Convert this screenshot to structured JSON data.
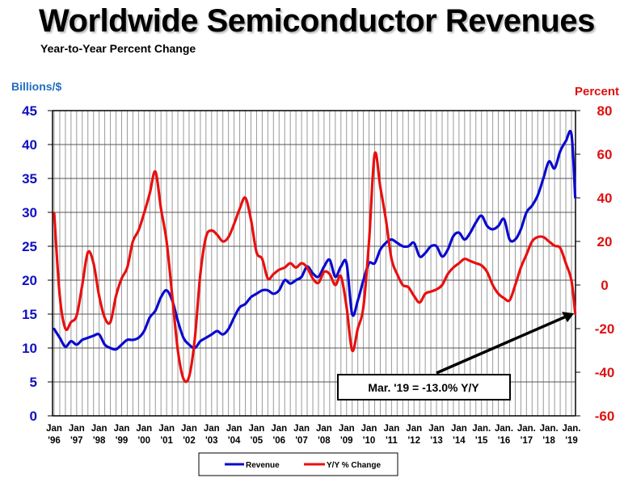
{
  "chart_data": {
    "type": "line",
    "title": "Worldwide Semiconductor Revenues",
    "subtitle": "Year-to-Year Percent Change",
    "ylabel_left": "Billions/$",
    "ylabel_right": "Percent",
    "ylim_left": [
      0,
      45
    ],
    "ylim_right": [
      -60,
      80
    ],
    "yticks_left": [
      "0",
      "5",
      "10",
      "15",
      "20",
      "25",
      "30",
      "35",
      "40",
      "45"
    ],
    "yticks_right": [
      "-60",
      "-40",
      "-20",
      "0",
      "20",
      "40",
      "60",
      "80"
    ],
    "xticks": [
      [
        "Jan",
        "'96"
      ],
      [
        "Jan",
        "'97"
      ],
      [
        "Jan",
        "'98"
      ],
      [
        "Jan",
        "'99"
      ],
      [
        "Jan",
        "'00"
      ],
      [
        "Jan",
        "'01"
      ],
      [
        "Jan",
        "'02"
      ],
      [
        "Jan",
        "'03"
      ],
      [
        "Jan",
        "'04"
      ],
      [
        "Jan",
        "'05"
      ],
      [
        "Jan",
        "'06"
      ],
      [
        "Jan",
        "'07"
      ],
      [
        "Jan",
        "'08"
      ],
      [
        "Jan",
        "'09"
      ],
      [
        "Jan",
        "'10"
      ],
      [
        "Jan",
        "'11"
      ],
      [
        "Jan",
        "'12"
      ],
      [
        "Jan",
        "'13"
      ],
      [
        "Jan",
        "'14"
      ],
      [
        "Jan.",
        "'15"
      ],
      [
        "Jan.",
        "'16"
      ],
      [
        "Jan.",
        "'17"
      ],
      [
        "Jan.",
        "'18"
      ],
      [
        "Jan.",
        "'19"
      ]
    ],
    "x_start_year": 1996,
    "x_step_months": 3,
    "grid": true,
    "legend_position": "bottom-center",
    "colors": {
      "revenue": "#0a0ad0",
      "yoy": "#e81010",
      "annotation": "#000000"
    },
    "series": [
      {
        "name": "Revenue",
        "axis": "left",
        "values": [
          12.8,
          11.5,
          10.2,
          11.0,
          10.5,
          11.2,
          11.5,
          11.8,
          12.0,
          10.5,
          10.0,
          9.8,
          10.5,
          11.2,
          11.2,
          11.5,
          12.5,
          14.5,
          15.5,
          17.5,
          18.5,
          17.0,
          14.0,
          11.5,
          10.5,
          10.0,
          11.0,
          11.5,
          12.0,
          12.5,
          12.0,
          12.8,
          14.5,
          16.0,
          16.5,
          17.5,
          18.0,
          18.5,
          18.5,
          18.0,
          18.5,
          20.0,
          19.5,
          20.0,
          20.5,
          22.0,
          21.0,
          20.5,
          22.0,
          23.0,
          20.5,
          22.0,
          22.5,
          15.0,
          17.0,
          20.0,
          22.5,
          22.5,
          24.5,
          25.5,
          26.0,
          25.5,
          25.0,
          25.0,
          25.5,
          23.5,
          24.0,
          25.0,
          25.0,
          23.5,
          24.5,
          26.5,
          27.0,
          26.0,
          27.0,
          28.5,
          29.5,
          28.0,
          27.5,
          28.0,
          29.0,
          26.0,
          26.0,
          27.5,
          30.0,
          31.0,
          32.5,
          35.0,
          37.5,
          36.5,
          39.0,
          40.5,
          41.5,
          32.2
        ]
      },
      {
        "name": "Y/Y % Change",
        "axis": "right",
        "values": [
          33,
          -5,
          -20,
          -17,
          -14,
          0,
          15,
          10,
          -5,
          -15,
          -17,
          -5,
          3,
          8,
          20,
          25,
          33,
          42,
          52,
          35,
          20,
          -5,
          -30,
          -43,
          -42,
          -25,
          5,
          22,
          25,
          23,
          20,
          22,
          28,
          35,
          40,
          30,
          15,
          12,
          3,
          5,
          7,
          8,
          10,
          8,
          10,
          8,
          3,
          1,
          6,
          5,
          0,
          4,
          -10,
          -30,
          -20,
          -10,
          20,
          60,
          45,
          30,
          12,
          5,
          0,
          -1,
          -5,
          -8,
          -4,
          -3,
          -2,
          0,
          5,
          8,
          10,
          12,
          11,
          10,
          9,
          6,
          0,
          -4,
          -6,
          -7,
          0,
          8,
          14,
          20,
          22,
          22,
          20,
          18,
          17,
          10,
          2,
          -13
        ]
      }
    ],
    "annotation": {
      "text": "Mar. '19 = -13.0% Y/Y",
      "points_to": {
        "series": "Y/Y % Change",
        "label": "Mar. '19",
        "value": -13.0
      }
    },
    "legend": [
      "Revenue",
      "Y/Y % Change"
    ]
  }
}
